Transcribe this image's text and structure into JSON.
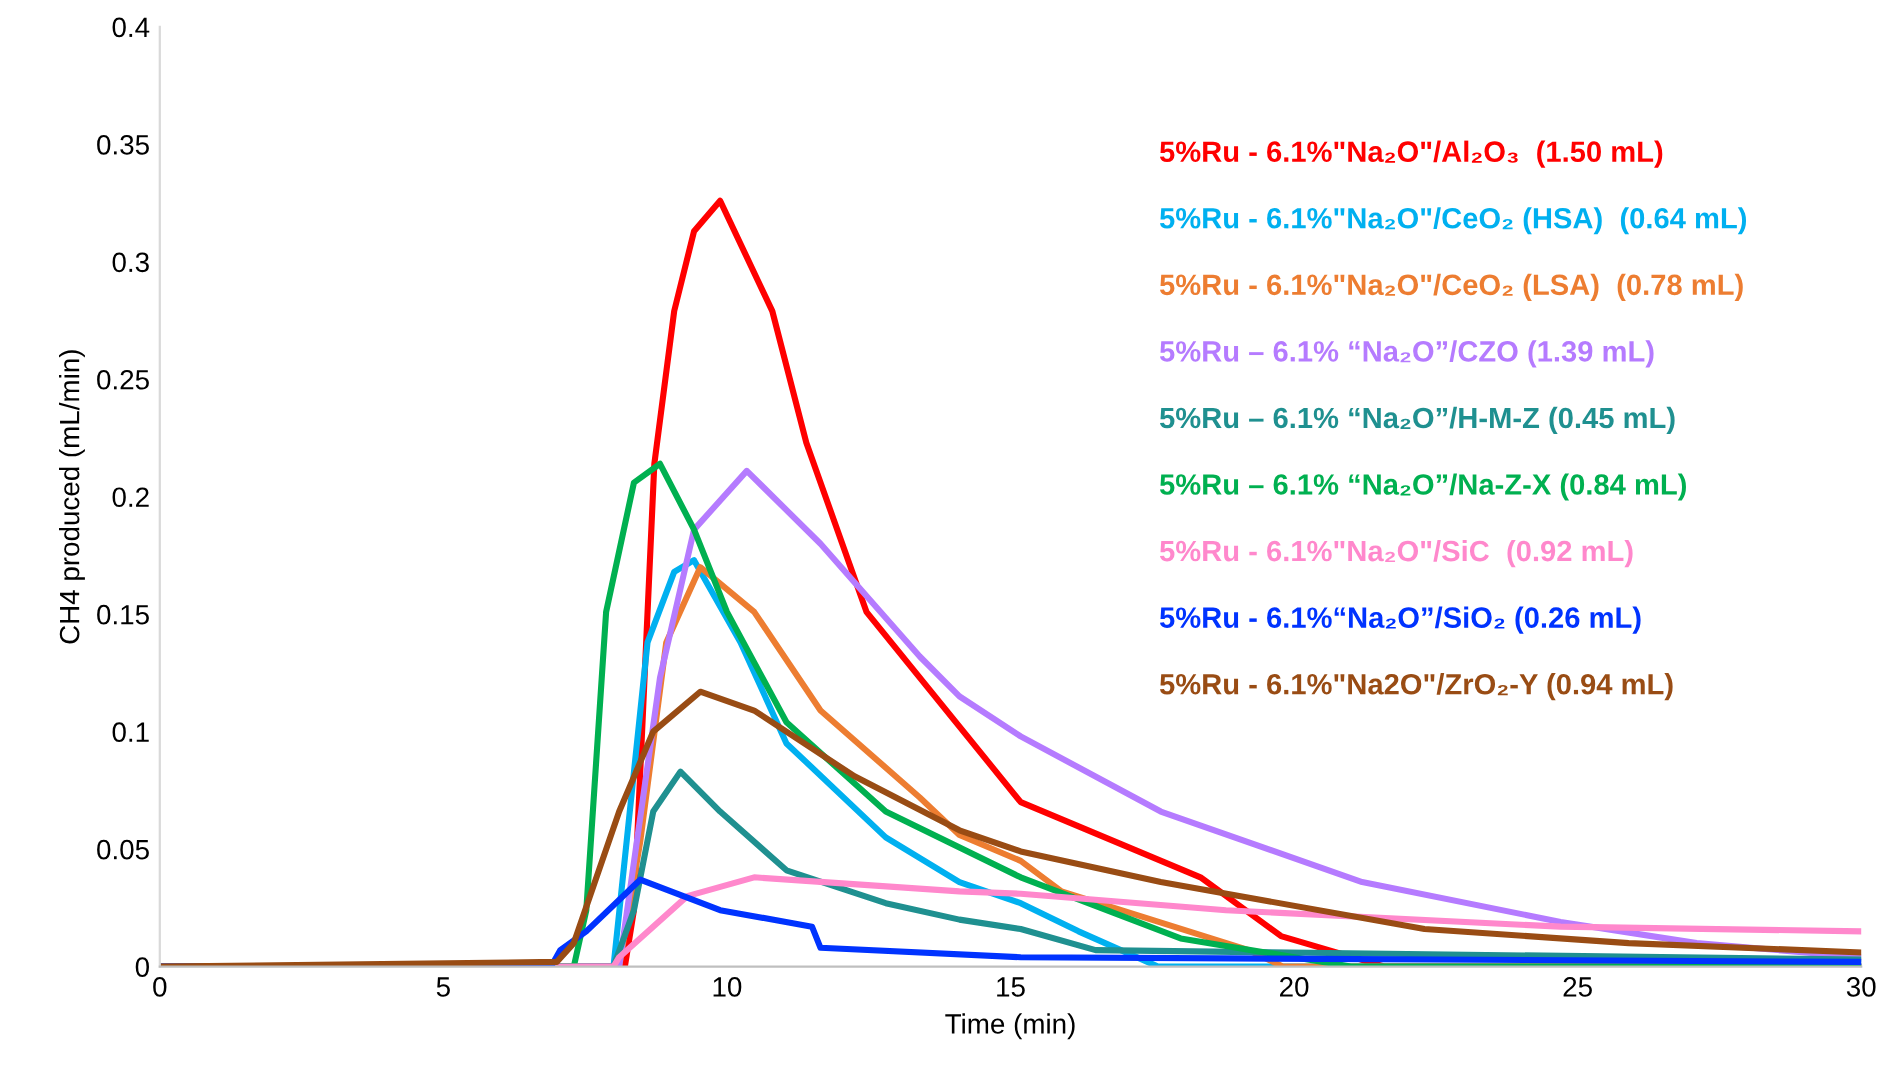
{
  "chart_data": {
    "type": "line",
    "xlabel": "Time (min)",
    "ylabel": "CH4 produced (mL/min)",
    "xlim": [
      0,
      30
    ],
    "xticks": [
      0,
      5,
      10,
      15,
      20,
      25,
      30
    ],
    "ylim": [
      0,
      0.4
    ],
    "yticks": [
      0,
      0.05,
      0.1,
      0.15,
      0.2,
      0.25,
      0.3,
      0.35,
      0.4
    ],
    "grid": false,
    "legend": "top right",
    "marker": "none",
    "line_style": "solid",
    "series": [
      {
        "name": "5%Ru - 6.1%\"Na₂O\"/Al₂O₃  (1.50 mL)",
        "color": "#ff0000",
        "x": [
          0,
          8.2,
          8.36,
          8.72,
          9.07,
          9.42,
          9.88,
          10.8,
          11.4,
          12.46,
          15.18,
          18.35,
          19.77,
          21.6,
          30
        ],
        "values": [
          0,
          0,
          0.024,
          0.214,
          0.279,
          0.313,
          0.326,
          0.279,
          0.223,
          0.151,
          0.07,
          0.038,
          0.013,
          0,
          0
        ]
      },
      {
        "name": "5%Ru - 6.1%\"Na₂O\"/CeO₂ (HSA)  (0.64 mL)",
        "color": "#00b0f0",
        "x": [
          0,
          8.0,
          8.6,
          9.07,
          9.42,
          10.24,
          11.05,
          12.8,
          14.1,
          15.18,
          16.2,
          17.6,
          30
        ],
        "values": [
          0,
          0,
          0.138,
          0.168,
          0.173,
          0.138,
          0.095,
          0.055,
          0.036,
          0.027,
          0.015,
          0,
          0
        ]
      },
      {
        "name": "5%Ru - 6.1%\"Na₂O\"/CeO₂ (LSA)  (0.78 mL)",
        "color": "#ed7d31",
        "x": [
          0,
          8.1,
          8.47,
          8.93,
          9.53,
          10.48,
          11.65,
          13.4,
          14.1,
          15.18,
          15.9,
          19.2,
          19.8,
          30
        ],
        "values": [
          0,
          0,
          0.053,
          0.138,
          0.17,
          0.151,
          0.109,
          0.072,
          0.056,
          0.045,
          0.032,
          0.007,
          0,
          0
        ]
      },
      {
        "name": "5%Ru – 6.1% “Na₂O”/CZO (1.39 mL)",
        "color": "#b57bff",
        "x": [
          0,
          8.1,
          8.82,
          9.42,
          10.35,
          11.65,
          13.4,
          14.1,
          15.18,
          17.65,
          21.2,
          24.7,
          27.1,
          30
        ],
        "values": [
          0,
          0,
          0.123,
          0.186,
          0.211,
          0.18,
          0.132,
          0.115,
          0.098,
          0.066,
          0.036,
          0.019,
          0.01,
          0.004
        ]
      },
      {
        "name": "5%Ru – 6.1% “Na₂O”/H-M-Z (0.45 mL)",
        "color": "#1f9090",
        "x": [
          0,
          8.0,
          8.36,
          8.7,
          9.18,
          9.88,
          11.05,
          12.8,
          14.1,
          15.18,
          16.5,
          30
        ],
        "values": [
          0,
          0,
          0.024,
          0.066,
          0.083,
          0.066,
          0.041,
          0.027,
          0.02,
          0.016,
          0.007,
          0.003
        ]
      },
      {
        "name": "5%Ru – 6.1% “Na₂O”/Na-Z-X (0.84 mL)",
        "color": "#00b050",
        "x": [
          0,
          7.3,
          7.52,
          7.87,
          8.36,
          8.82,
          9.42,
          10.0,
          11.05,
          12.8,
          15.18,
          18.0,
          20.0,
          21.0,
          30
        ],
        "values": [
          0,
          0,
          0.024,
          0.151,
          0.206,
          0.214,
          0.186,
          0.151,
          0.104,
          0.066,
          0.038,
          0.012,
          0.004,
          0,
          0
        ]
      },
      {
        "name": "5%Ru - 6.1%\"Na₂O\"/SiC  (0.92 mL)",
        "color": "#ff88cc",
        "x": [
          0,
          8.0,
          8.1,
          9.3,
          10.48,
          14.1,
          15.18,
          18.8,
          24.7,
          30
        ],
        "values": [
          0,
          0,
          0.004,
          0.03,
          0.038,
          0.032,
          0.031,
          0.024,
          0.017,
          0.015
        ]
      },
      {
        "name": "5%Ru - 6.1%“Na₂O”/SiO₂ (0.26 mL)",
        "color": "#0033ff",
        "x": [
          0,
          6.9,
          7.06,
          7.52,
          8.47,
          9.88,
          11.5,
          11.65,
          15.18,
          30
        ],
        "values": [
          0,
          0,
          0.007,
          0.015,
          0.037,
          0.024,
          0.017,
          0.008,
          0.004,
          0.002
        ]
      },
      {
        "name": "5%Ru - 6.1%\"Na2O\"/ZrO₂-Y (0.94 mL)",
        "color": "#994c14",
        "x": [
          0,
          7.0,
          7.3,
          8.1,
          8.7,
          9.53,
          10.48,
          12.25,
          14.1,
          15.18,
          17.65,
          22.3,
          25.9,
          30
        ],
        "values": [
          0,
          0.002,
          0.01,
          0.066,
          0.1,
          0.117,
          0.109,
          0.081,
          0.058,
          0.049,
          0.036,
          0.016,
          0.01,
          0.006
        ]
      }
    ]
  }
}
